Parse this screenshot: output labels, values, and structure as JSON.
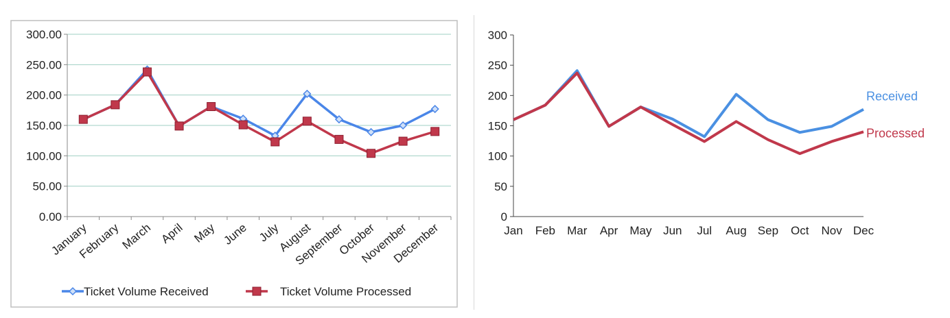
{
  "chart_data": [
    {
      "type": "line",
      "title": "",
      "xlabel": "",
      "ylabel": "",
      "categories": [
        "January",
        "February",
        "March",
        "April",
        "May",
        "June",
        "July",
        "August",
        "September",
        "October",
        "November",
        "December"
      ],
      "y_ticks": [
        "0.00",
        "50.00",
        "100.00",
        "150.00",
        "200.00",
        "250.00",
        "300.00"
      ],
      "ylim": [
        0,
        300
      ],
      "grid": true,
      "legend_position": "bottom",
      "series": [
        {
          "name": "Ticket Volume Received",
          "color": "#4a86e8",
          "marker": "diamond",
          "values": [
            160,
            184,
            242,
            149,
            181,
            161,
            133,
            202,
            160,
            139,
            150,
            177
          ]
        },
        {
          "name": "Ticket Volume Processed",
          "color": "#c0384b",
          "marker": "square",
          "values": [
            160,
            184,
            238,
            149,
            181,
            151,
            123,
            157,
            127,
            104,
            124,
            140
          ]
        }
      ]
    },
    {
      "type": "line",
      "title": "",
      "xlabel": "",
      "ylabel": "",
      "categories": [
        "Jan",
        "Feb",
        "Mar",
        "Apr",
        "May",
        "Jun",
        "Jul",
        "Aug",
        "Sep",
        "Oct",
        "Nov",
        "Dec"
      ],
      "y_ticks": [
        "0",
        "50",
        "100",
        "150",
        "200",
        "250",
        "300"
      ],
      "ylim": [
        0,
        300
      ],
      "grid": false,
      "legend_position": "direct-labels-right",
      "series": [
        {
          "name": "Received",
          "color": "#4a90e2",
          "values": [
            160,
            184,
            241,
            149,
            181,
            161,
            132,
            202,
            160,
            139,
            149,
            177
          ]
        },
        {
          "name": "Processed",
          "color": "#c0384b",
          "values": [
            160,
            184,
            237,
            149,
            181,
            152,
            124,
            157,
            127,
            104,
            124,
            140
          ]
        }
      ]
    }
  ]
}
